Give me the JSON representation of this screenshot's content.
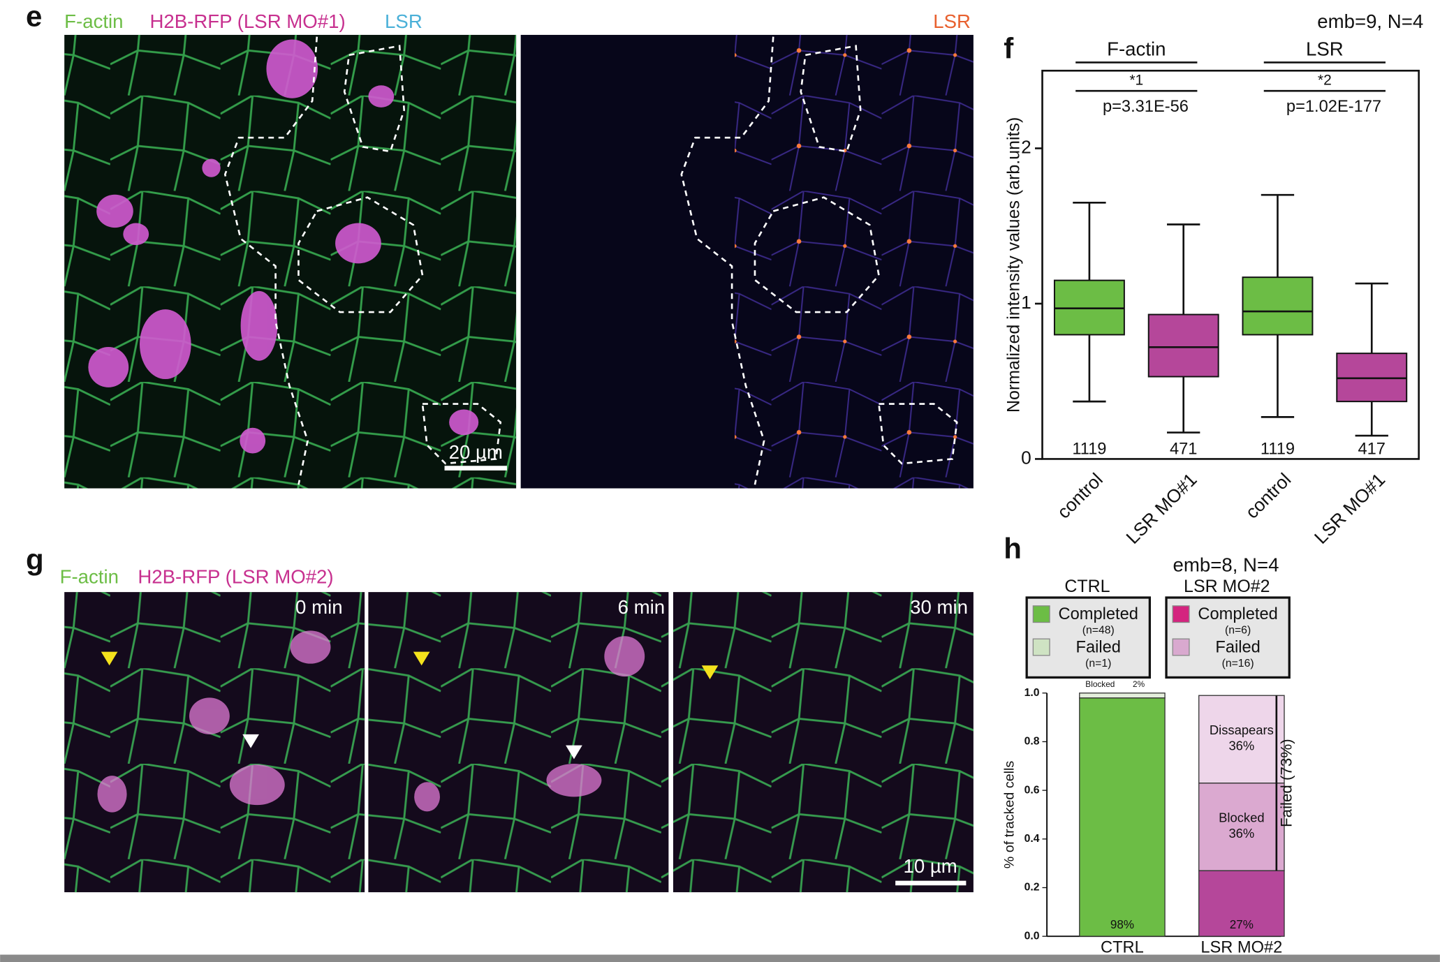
{
  "figure": {
    "e": {
      "letter": "e",
      "channels": [
        "F-actin",
        "H2B-RFP (LSR MO#1)",
        "LSR"
      ],
      "right_channel": "LSR",
      "scale_bar": "20 µm"
    },
    "g": {
      "letter": "g",
      "channels": [
        "F-actin",
        "H2B-RFP (LSR MO#2)"
      ],
      "times": [
        "0 min",
        "6 min",
        "30 min"
      ],
      "scale_bar": "10 µm"
    }
  },
  "chart_data": [
    {
      "type": "box",
      "panel": "f",
      "note": "emb=9, N=4",
      "ylabel": "Normalized intensity values (arb.units)",
      "categories": [
        "control",
        "LSR MO#1",
        "control",
        "LSR MO#1"
      ],
      "groups": [
        {
          "name": "F-actin",
          "star": "*1",
          "p": "p=3.31E-56"
        },
        {
          "name": "LSR",
          "star": "*2",
          "p": "p=1.02E-177"
        }
      ],
      "counts": [
        1119,
        471,
        1119,
        417
      ],
      "boxes": [
        {
          "whisker_low": 0.37,
          "q1": 0.8,
          "median": 0.97,
          "q3": 1.15,
          "whisker_high": 1.65,
          "color": "#6cbd45"
        },
        {
          "whisker_low": 0.17,
          "q1": 0.53,
          "median": 0.72,
          "q3": 0.93,
          "whisker_high": 1.51,
          "color": "#b5479a"
        },
        {
          "whisker_low": 0.27,
          "q1": 0.8,
          "median": 0.95,
          "q3": 1.17,
          "whisker_high": 1.7,
          "color": "#6cbd45"
        },
        {
          "whisker_low": 0.15,
          "q1": 0.37,
          "median": 0.52,
          "q3": 0.68,
          "whisker_high": 1.13,
          "color": "#b5479a"
        }
      ],
      "ylim": [
        0,
        2.5
      ],
      "yticks": [
        0,
        1,
        2
      ]
    },
    {
      "type": "stacked_bar",
      "panel": "h",
      "note": "emb=8, N=4",
      "ylabel": "% of tracked cells",
      "categories": [
        "CTRL",
        "LSR MO#2"
      ],
      "series": [
        {
          "name": "Completed",
          "colors": [
            "#6cbd45",
            "#b5479a"
          ],
          "values": [
            0.98,
            0.27
          ],
          "value_labels": [
            "98%",
            "27%"
          ]
        },
        {
          "name": "Blocked",
          "colors": [
            "#e4eedc",
            "#dba9d0"
          ],
          "values": [
            0.02,
            0.36
          ],
          "value_labels": [
            "2%",
            "36%"
          ]
        },
        {
          "name": "Dissapears",
          "colors": [
            "#eedcea",
            "#eed6ea"
          ],
          "values": [
            null,
            0.36
          ],
          "value_labels": [
            null,
            "36%"
          ]
        }
      ],
      "legends": [
        {
          "title": "CTRL",
          "items": [
            {
              "n": "(n=48)",
              "color": "#6cbd45"
            },
            {
              "name": "Failed",
              "n": "(n=1)",
              "color": "#cfe3c3"
            }
          ]
        },
        {
          "title": "LSR MO#2",
          "items": [
            {
              "n": "(n=6)",
              "color": "#d4247f"
            },
            {
              "name": "Failed",
              "n": "(n=16)",
              "color": "#d9a9cf"
            }
          ]
        }
      ],
      "failed_label": "Failed (73%)",
      "ylim": [
        0,
        1
      ],
      "yticks": [
        {
          "value": 0,
          "label": "0.0"
        },
        0.2,
        0.4,
        0.6,
        0.8,
        {
          "value": 1,
          "label": "1.0"
        }
      ]
    }
  ]
}
